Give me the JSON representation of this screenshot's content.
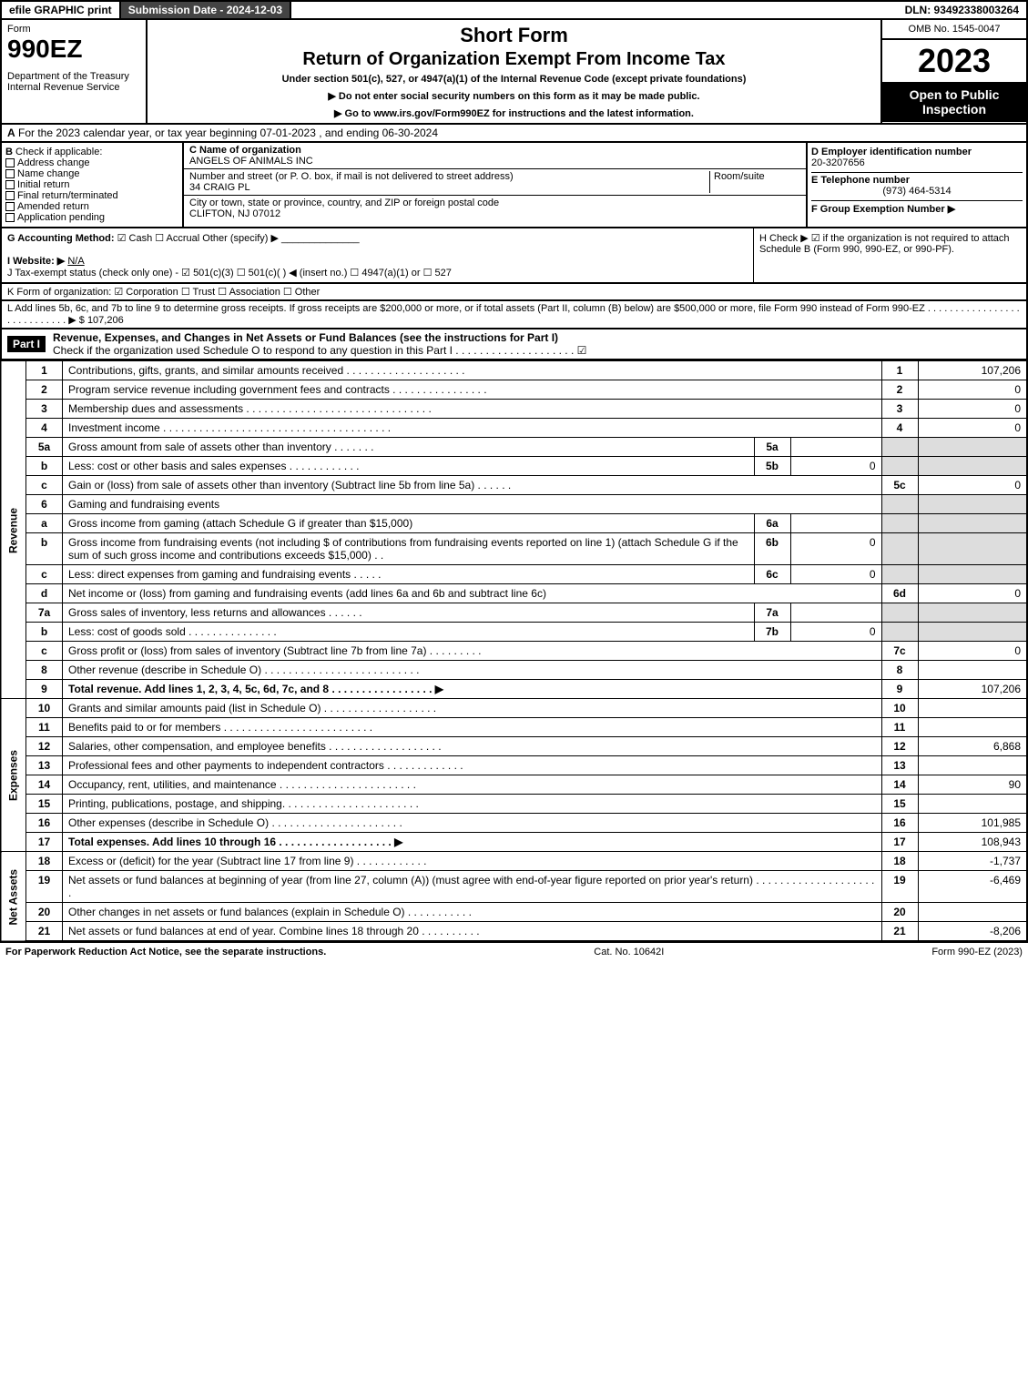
{
  "topbar": {
    "efile": "efile GRAPHIC print",
    "subdate": "Submission Date - 2024-12-03",
    "dln": "DLN: 93492338003264"
  },
  "header": {
    "form_label": "Form",
    "form_no": "990EZ",
    "dept1": "Department of the Treasury",
    "dept2": "Internal Revenue Service",
    "short_form": "Short Form",
    "return_title": "Return of Organization Exempt From Income Tax",
    "under_section": "Under section 501(c), 527, or 4947(a)(1) of the Internal Revenue Code (except private foundations)",
    "no_ssn": "▶ Do not enter social security numbers on this form as it may be made public.",
    "goto": "▶ Go to www.irs.gov/Form990EZ for instructions and the latest information.",
    "omb": "OMB No. 1545-0047",
    "year": "2023",
    "open": "Open to Public Inspection"
  },
  "rowA": {
    "label": "A",
    "text": "For the 2023 calendar year, or tax year beginning 07-01-2023 , and ending 06-30-2024"
  },
  "colB": {
    "label": "B",
    "title": "Check if applicable:",
    "items": [
      "Address change",
      "Name change",
      "Initial return",
      "Final return/terminated",
      "Amended return",
      "Application pending"
    ]
  },
  "colC": {
    "name_lbl": "C Name of organization",
    "name": "ANGELS OF ANIMALS INC",
    "street_lbl": "Number and street (or P. O. box, if mail is not delivered to street address)",
    "room_lbl": "Room/suite",
    "street": "34 CRAIG PL",
    "city_lbl": "City or town, state or province, country, and ZIP or foreign postal code",
    "city": "CLIFTON, NJ  07012"
  },
  "colD": {
    "ein_lbl": "D Employer identification number",
    "ein": "20-3207656",
    "tel_lbl": "E Telephone number",
    "tel": "(973) 464-5314",
    "grp_lbl": "F Group Exemption Number   ▶"
  },
  "rowG": {
    "g_lbl": "G Accounting Method:",
    "g_opts": "☑ Cash   ☐ Accrual   Other (specify) ▶",
    "h_text": "H  Check ▶ ☑ if the organization is not required to attach Schedule B (Form 990, 990-EZ, or 990-PF).",
    "i_lbl": "I Website: ▶",
    "i_val": "N/A",
    "j_text": "J Tax-exempt status (check only one) - ☑ 501(c)(3) ☐ 501(c)(  ) ◀ (insert no.) ☐ 4947(a)(1) or ☐ 527"
  },
  "rowK": "K Form of organization:   ☑ Corporation   ☐ Trust   ☐ Association   ☐ Other",
  "rowL": {
    "text": "L Add lines 5b, 6c, and 7b to line 9 to determine gross receipts. If gross receipts are $200,000 or more, or if total assets (Part II, column (B) below) are $500,000 or more, file Form 990 instead of Form 990-EZ  .  .  .  .  .  .  .  .  .  .  .  .  .  .  .  .  .  .  .  .  .  .  .  .  .  .  .  .  ▶ $",
    "val": "107,206"
  },
  "partI": {
    "hdr": "Part I",
    "title": "Revenue, Expenses, and Changes in Net Assets or Fund Balances (see the instructions for Part I)",
    "sub": "Check if the organization used Schedule O to respond to any question in this Part I  .  .  .  .  .  .  .  .  .  .  .  .  .  .  .  .  .  .  .  .  ☑"
  },
  "sections": {
    "revenue": "Revenue",
    "expenses": "Expenses",
    "netassets": "Net Assets"
  },
  "lines": {
    "l1": {
      "n": "1",
      "d": "Contributions, gifts, grants, and similar amounts received  .  .  .  .  .  .  .  .  .  .  .  .  .  .  .  .  .  .  .  .",
      "r": "1",
      "v": "107,206"
    },
    "l2": {
      "n": "2",
      "d": "Program service revenue including government fees and contracts  .  .  .  .  .  .  .  .  .  .  .  .  .  .  .  .",
      "r": "2",
      "v": "0"
    },
    "l3": {
      "n": "3",
      "d": "Membership dues and assessments  .  .  .  .  .  .  .  .  .  .  .  .  .  .  .  .  .  .  .  .  .  .  .  .  .  .  .  .  .  .  .",
      "r": "3",
      "v": "0"
    },
    "l4": {
      "n": "4",
      "d": "Investment income  .  .  .  .  .  .  .  .  .  .  .  .  .  .  .  .  .  .  .  .  .  .  .  .  .  .  .  .  .  .  .  .  .  .  .  .  .  .",
      "r": "4",
      "v": "0"
    },
    "l5a": {
      "n": "5a",
      "d": "Gross amount from sale of assets other than inventory  .  .  .  .  .  .  .",
      "ml": "5a",
      "mv": ""
    },
    "l5b": {
      "n": "b",
      "d": "Less: cost or other basis and sales expenses  .  .  .  .  .  .  .  .  .  .  .  .",
      "ml": "5b",
      "mv": "0"
    },
    "l5c": {
      "n": "c",
      "d": "Gain or (loss) from sale of assets other than inventory (Subtract line 5b from line 5a)  .  .  .  .  .  .",
      "r": "5c",
      "v": "0"
    },
    "l6": {
      "n": "6",
      "d": "Gaming and fundraising events"
    },
    "l6a": {
      "n": "a",
      "d": "Gross income from gaming (attach Schedule G if greater than $15,000)",
      "ml": "6a",
      "mv": ""
    },
    "l6b": {
      "n": "b",
      "d": "Gross income from fundraising events (not including $                of contributions from fundraising events reported on line 1) (attach Schedule G if the sum of such gross income and contributions exceeds $15,000)  .  .",
      "ml": "6b",
      "mv": "0"
    },
    "l6c": {
      "n": "c",
      "d": "Less: direct expenses from gaming and fundraising events  .  .  .  .  .",
      "ml": "6c",
      "mv": "0"
    },
    "l6d": {
      "n": "d",
      "d": "Net income or (loss) from gaming and fundraising events (add lines 6a and 6b and subtract line 6c)",
      "r": "6d",
      "v": "0"
    },
    "l7a": {
      "n": "7a",
      "d": "Gross sales of inventory, less returns and allowances  .  .  .  .  .  .",
      "ml": "7a",
      "mv": ""
    },
    "l7b": {
      "n": "b",
      "d": "Less: cost of goods sold        .  .  .  .  .  .  .  .  .  .  .  .  .  .  .",
      "ml": "7b",
      "mv": "0"
    },
    "l7c": {
      "n": "c",
      "d": "Gross profit or (loss) from sales of inventory (Subtract line 7b from line 7a)  .  .  .  .  .  .  .  .  .",
      "r": "7c",
      "v": "0"
    },
    "l8": {
      "n": "8",
      "d": "Other revenue (describe in Schedule O)  .  .  .  .  .  .  .  .  .  .  .  .  .  .  .  .  .  .  .  .  .  .  .  .  .  .",
      "r": "8",
      "v": ""
    },
    "l9": {
      "n": "9",
      "d": "Total revenue. Add lines 1, 2, 3, 4, 5c, 6d, 7c, and 8   .  .  .  .  .  .  .  .  .  .  .  .  .  .  .  .  .  ▶",
      "r": "9",
      "v": "107,206",
      "bold": true
    },
    "l10": {
      "n": "10",
      "d": "Grants and similar amounts paid (list in Schedule O)  .  .  .  .  .  .  .  .  .  .  .  .  .  .  .  .  .  .  .",
      "r": "10",
      "v": ""
    },
    "l11": {
      "n": "11",
      "d": "Benefits paid to or for members       .  .  .  .  .  .  .  .  .  .  .  .  .  .  .  .  .  .  .  .  .  .  .  .  .",
      "r": "11",
      "v": ""
    },
    "l12": {
      "n": "12",
      "d": "Salaries, other compensation, and employee benefits  .  .  .  .  .  .  .  .  .  .  .  .  .  .  .  .  .  .  .",
      "r": "12",
      "v": "6,868"
    },
    "l13": {
      "n": "13",
      "d": "Professional fees and other payments to independent contractors  .  .  .  .  .  .  .  .  .  .  .  .  .",
      "r": "13",
      "v": ""
    },
    "l14": {
      "n": "14",
      "d": "Occupancy, rent, utilities, and maintenance .  .  .  .  .  .  .  .  .  .  .  .  .  .  .  .  .  .  .  .  .  .  .",
      "r": "14",
      "v": "90"
    },
    "l15": {
      "n": "15",
      "d": "Printing, publications, postage, and shipping.  .  .  .  .  .  .  .  .  .  .  .  .  .  .  .  .  .  .  .  .  .  .",
      "r": "15",
      "v": ""
    },
    "l16": {
      "n": "16",
      "d": "Other expenses (describe in Schedule O)     .  .  .  .  .  .  .  .  .  .  .  .  .  .  .  .  .  .  .  .  .  .",
      "r": "16",
      "v": "101,985"
    },
    "l17": {
      "n": "17",
      "d": "Total expenses. Add lines 10 through 16     .  .  .  .  .  .  .  .  .  .  .  .  .  .  .  .  .  .  .   ▶",
      "r": "17",
      "v": "108,943",
      "bold": true
    },
    "l18": {
      "n": "18",
      "d": "Excess or (deficit) for the year (Subtract line 17 from line 9)       .  .  .  .  .  .  .  .  .  .  .  .",
      "r": "18",
      "v": "-1,737"
    },
    "l19": {
      "n": "19",
      "d": "Net assets or fund balances at beginning of year (from line 27, column (A)) (must agree with end-of-year figure reported on prior year's return) .  .  .  .  .  .  .  .  .  .  .  .  .  .  .  .  .  .  .  .  .",
      "r": "19",
      "v": "-6,469"
    },
    "l20": {
      "n": "20",
      "d": "Other changes in net assets or fund balances (explain in Schedule O)  .  .  .  .  .  .  .  .  .  .  .",
      "r": "20",
      "v": ""
    },
    "l21": {
      "n": "21",
      "d": "Net assets or fund balances at end of year. Combine lines 18 through 20  .  .  .  .  .  .  .  .  .  .",
      "r": "21",
      "v": "-8,206"
    }
  },
  "footer": {
    "left": "For Paperwork Reduction Act Notice, see the separate instructions.",
    "mid": "Cat. No. 10642I",
    "right": "Form 990-EZ (2023)"
  }
}
